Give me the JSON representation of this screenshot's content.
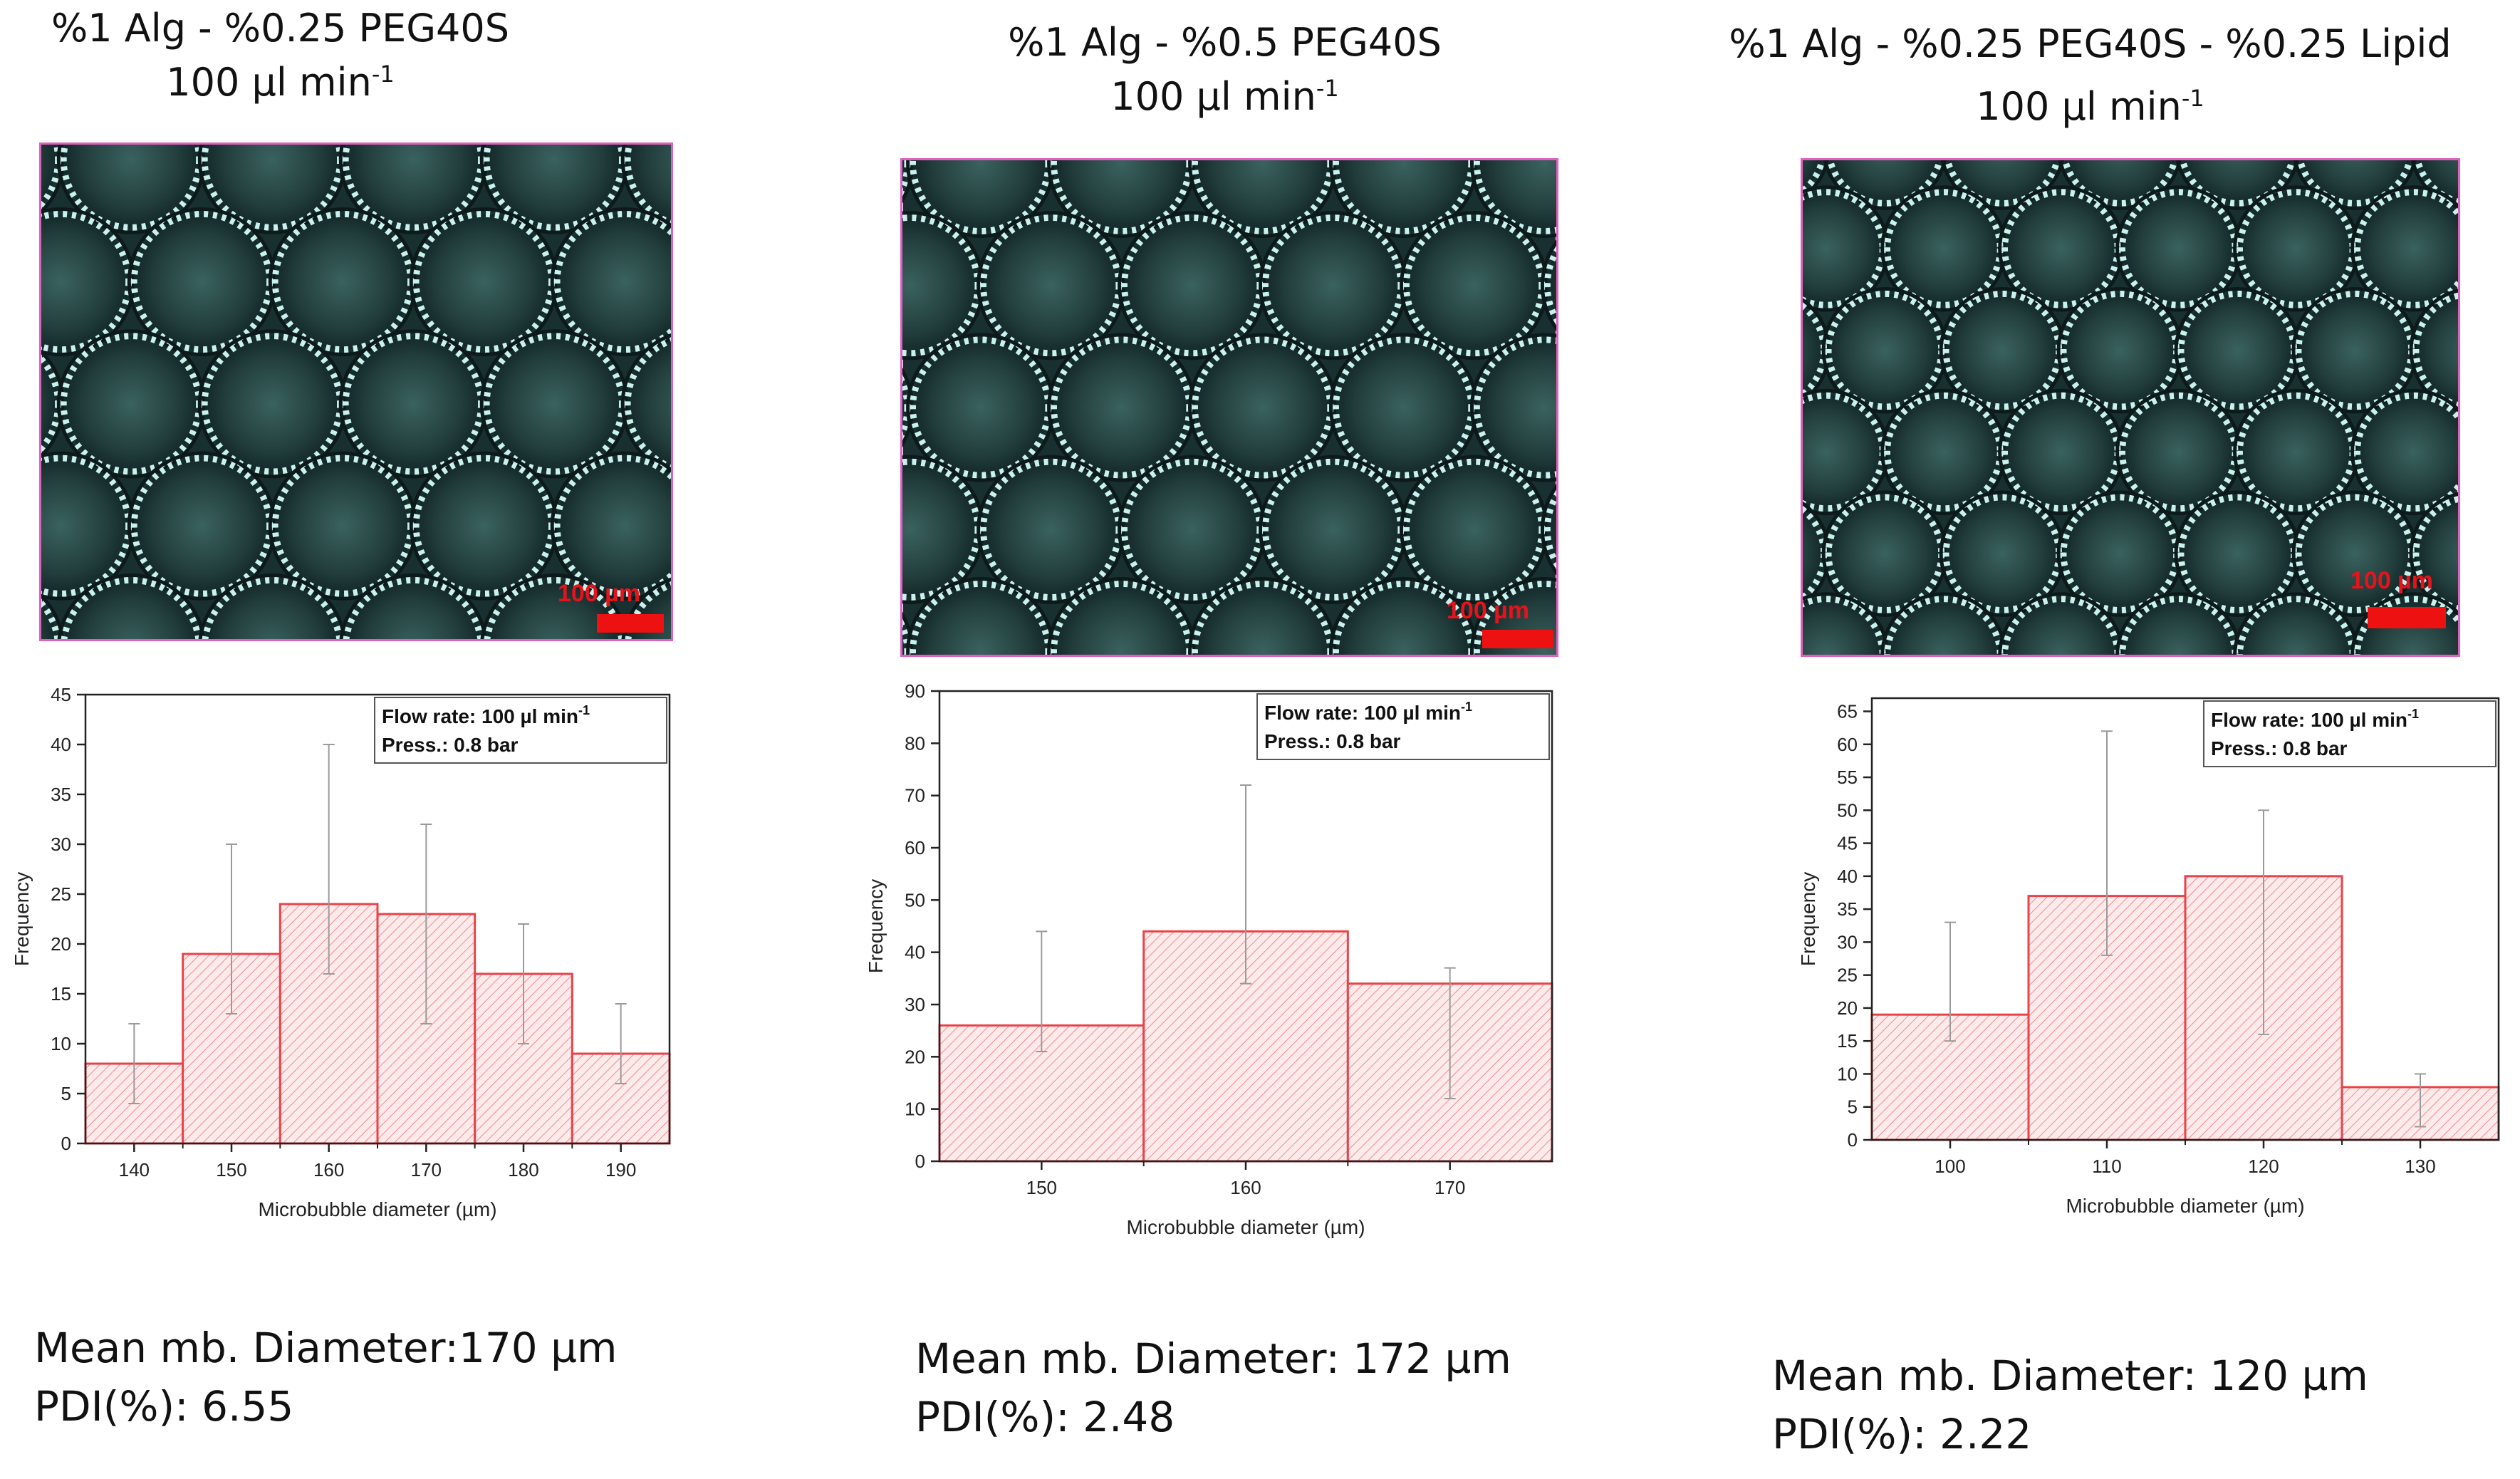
{
  "panels": [
    {
      "title_line1": "%1 Alg - %0.25 PEG40S",
      "title_line2": "100 µl min",
      "title_sup": "-1",
      "scale_bar_label": "100 µm",
      "mean_text": "Mean mb. Diameter:170 µm",
      "pdi_text": "PDI(%): 6.55"
    },
    {
      "title_line1": "%1 Alg - %0.5 PEG40S",
      "title_line2": "100 µl min",
      "title_sup": "-1",
      "scale_bar_label": "100 µm",
      "mean_text": "Mean mb. Diameter: 172 µm",
      "pdi_text": "PDI(%): 2.48"
    },
    {
      "title_line1": "%1 Alg - %0.25 PEG40S - %0.25 Lipid",
      "title_line2": "100 µl min",
      "title_sup": "-1",
      "scale_bar_label": "100 µm",
      "mean_text": "Mean mb. Diameter: 120 µm",
      "pdi_text": "PDI(%): 2.22"
    }
  ],
  "chart_data": [
    {
      "type": "bar",
      "xlabel": "Microbubble diameter (µm)",
      "ylabel": "Frequency",
      "legend_line1": "Flow rate: 100 µl min",
      "legend_sup": "-1",
      "legend_line2": "Press.: 0.8 bar",
      "bin_width": 10,
      "categories": [
        140,
        150,
        160,
        170,
        180,
        190
      ],
      "values": [
        8,
        19,
        24,
        23,
        17,
        9
      ],
      "err_low": [
        4,
        13,
        17,
        12,
        10,
        6
      ],
      "err_high": [
        12,
        30,
        40,
        32,
        22,
        14
      ],
      "xlim": [
        135,
        195
      ],
      "ylim": [
        0,
        45
      ],
      "yticks": [
        0,
        5,
        10,
        15,
        20,
        25,
        30,
        35,
        40,
        45
      ],
      "xticks": [
        140,
        150,
        160,
        170,
        180,
        190
      ],
      "bar_color": "#e8434a"
    },
    {
      "type": "bar",
      "xlabel": "Microbubble diameter (µm)",
      "ylabel": "Frequency",
      "legend_line1": "Flow rate: 100 µl min",
      "legend_sup": "-1",
      "legend_line2": "Press.: 0.8 bar",
      "bin_width": 10,
      "categories": [
        150,
        160,
        170
      ],
      "values": [
        26,
        44,
        34
      ],
      "err_low": [
        21,
        34,
        12
      ],
      "err_high": [
        44,
        72,
        37
      ],
      "xlim": [
        145,
        175
      ],
      "ylim": [
        0,
        90
      ],
      "yticks": [
        0,
        10,
        20,
        30,
        40,
        50,
        60,
        70,
        80,
        90
      ],
      "xticks": [
        150,
        160,
        170
      ],
      "bar_color": "#e8434a"
    },
    {
      "type": "bar",
      "xlabel": "Microbubble diameter (µm)",
      "ylabel": "Frequency",
      "legend_line1": "Flow rate: 100 µl min",
      "legend_sup": "-1",
      "legend_line2": "Press.: 0.8 bar",
      "bin_width": 10,
      "categories": [
        100,
        110,
        120,
        130
      ],
      "values": [
        19,
        37,
        40,
        8
      ],
      "err_low": [
        15,
        28,
        16,
        2
      ],
      "err_high": [
        33,
        62,
        50,
        10
      ],
      "xlim": [
        95,
        135
      ],
      "ylim": [
        0,
        67
      ],
      "yticks": [
        0,
        5,
        10,
        15,
        20,
        25,
        30,
        35,
        40,
        45,
        50,
        55,
        60,
        65
      ],
      "xticks": [
        100,
        110,
        120,
        130
      ],
      "bar_color": "#e8434a"
    }
  ]
}
